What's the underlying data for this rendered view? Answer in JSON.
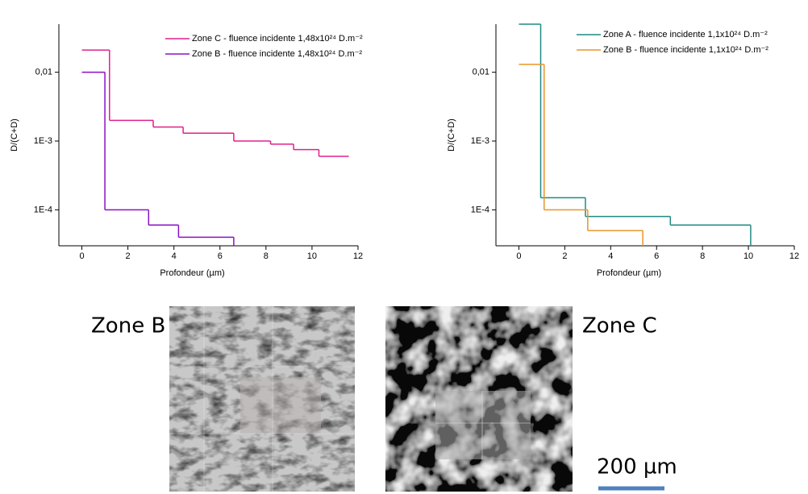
{
  "chart_data": [
    {
      "type": "step",
      "xlabel": "Profondeur (µm)",
      "ylabel": "D/(C+D)",
      "log_y": true,
      "legend": "upper right",
      "xlim": [
        -1,
        12
      ],
      "xticks": [
        0,
        2,
        4,
        6,
        8,
        10,
        12
      ],
      "ylim": [
        3e-05,
        0.05
      ],
      "yticks": [
        {
          "value": 0.0001,
          "label": "1E-4"
        },
        {
          "value": 0.001,
          "label": "1E-3"
        },
        {
          "value": 0.01,
          "label": "0,01"
        }
      ],
      "series": [
        {
          "name": "Zone C - fluence incidente 1,48x10²⁴ D.m⁻²",
          "color": "#e0208a",
          "drop": false,
          "bins": [
            0,
            1.2,
            3.1,
            4.4,
            6.6,
            8.2,
            9.2,
            10.3,
            11.6
          ],
          "values": [
            0.021,
            0.002,
            0.0016,
            0.0013,
            0.001,
            0.0009,
            0.00075,
            0.0006
          ]
        },
        {
          "name": "Zone B - fluence incidente 1,48x10²⁴ D.m⁻²",
          "color": "#8a10c8",
          "drop": true,
          "bins": [
            0,
            1.0,
            2.9,
            4.2,
            6.6
          ],
          "values": [
            0.01,
            0.0001,
            6e-05,
            4e-05
          ]
        }
      ]
    },
    {
      "type": "step",
      "xlabel": "Profondeur (µm)",
      "ylabel": "D/(C+D)",
      "log_y": true,
      "legend": "upper right",
      "xlim": [
        -1,
        12
      ],
      "xticks": [
        0,
        2,
        4,
        6,
        8,
        10,
        12
      ],
      "ylim": [
        3e-05,
        0.05
      ],
      "yticks": [
        {
          "value": 0.0001,
          "label": "1E-4"
        },
        {
          "value": 0.001,
          "label": "1E-3"
        },
        {
          "value": 0.01,
          "label": "0,01"
        }
      ],
      "series": [
        {
          "name": "Zone A - fluence incidente 1,1x10²⁴ D.m⁻²",
          "color": "#1f8a84",
          "drop": true,
          "bins": [
            0,
            0.95,
            2.9,
            6.6,
            10.1
          ],
          "values": [
            0.05,
            0.00015,
            8e-05,
            6e-05
          ]
        },
        {
          "name": "Zone B - fluence incidente 1,1x10²⁴ D.m⁻²",
          "color": "#e8962a",
          "drop": true,
          "bins": [
            0,
            1.1,
            3.0,
            5.4
          ],
          "values": [
            0.013,
            0.0001,
            5e-05
          ]
        }
      ]
    }
  ],
  "images": [
    {
      "label": "Zone B"
    },
    {
      "label": "Zone C"
    }
  ],
  "scale_bar": "200 µm"
}
